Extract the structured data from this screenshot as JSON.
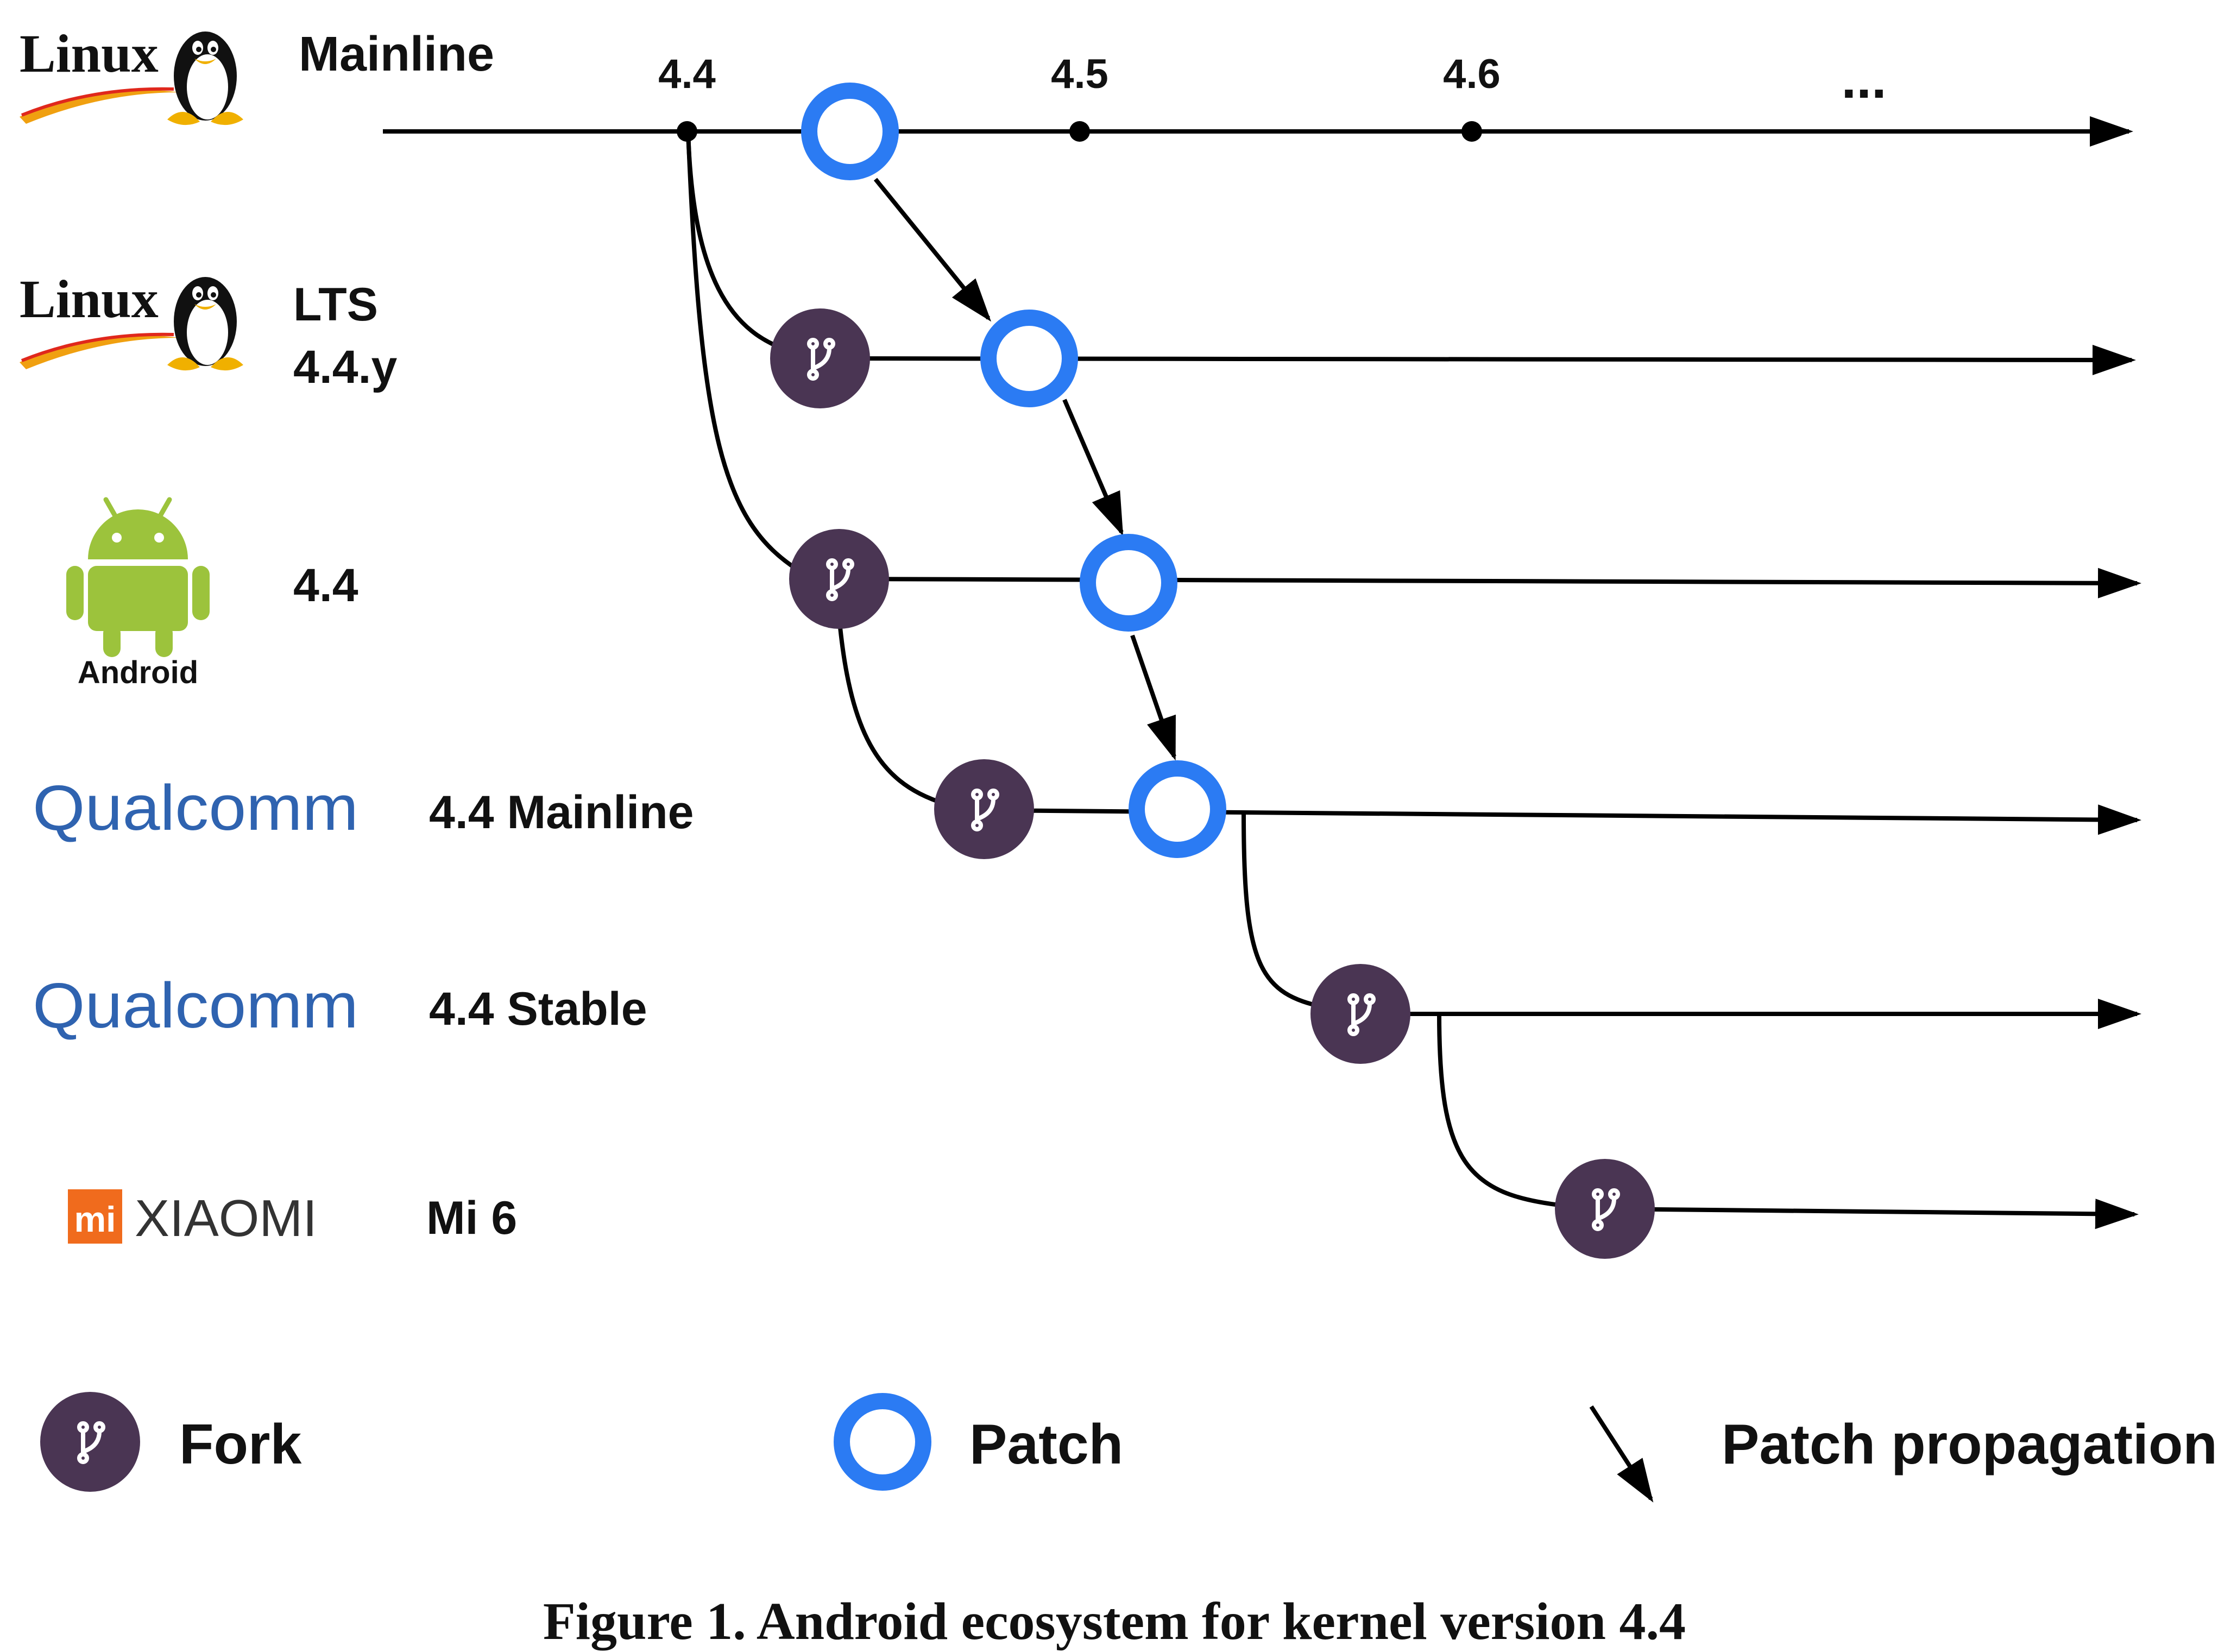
{
  "colors": {
    "line": "#000000",
    "fork_fill": "#4a3553",
    "fork_icon": "#ffffff",
    "patch_ring": "#2b7bf3",
    "linux_swoosh": "#f0a010",
    "android_green": "#9cc33c",
    "qualcomm_blue": "#2f63b0",
    "xiaomi_orange": "#f06b1d"
  },
  "rows": [
    {
      "id": "mainline",
      "logo": "linux-tux-logo",
      "logo_text": "Linux",
      "label_lines": [
        "Mainline"
      ]
    },
    {
      "id": "lts",
      "logo": "linux-tux-logo",
      "logo_text": "Linux",
      "label_lines": [
        "LTS",
        "4.4.y"
      ]
    },
    {
      "id": "android",
      "logo": "android-robot-logo",
      "logo_text": "Android",
      "label_lines": [
        "4.4"
      ]
    },
    {
      "id": "qcom-mainline",
      "logo": "qualcomm-logo",
      "logo_text": "Qualcomm",
      "label_lines": [
        "4.4 Mainline"
      ]
    },
    {
      "id": "qcom-stable",
      "logo": "qualcomm-logo",
      "logo_text": "Qualcomm",
      "label_lines": [
        "4.4 Stable"
      ]
    },
    {
      "id": "mi6",
      "logo": "xiaomi-logo",
      "logo_text": "XIAOMI",
      "logo_badge": "mi",
      "label_lines": [
        "Mi 6"
      ]
    }
  ],
  "mainline_versions": [
    "4.4",
    "4.5",
    "4.6",
    "..."
  ],
  "legend": {
    "fork": {
      "icon": "fork-icon",
      "label": "Fork"
    },
    "patch": {
      "icon": "patch-ring-icon",
      "label": "Patch"
    },
    "propagation": {
      "icon": "arrow-icon",
      "label": "Patch propagation"
    }
  },
  "caption": "Figure 1. Android ecosystem for kernel version 4.4"
}
